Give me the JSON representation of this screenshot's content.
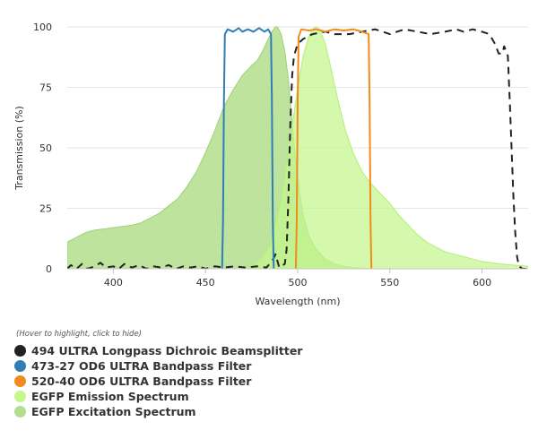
{
  "chart_data": {
    "type": "area",
    "title": "",
    "xlabel": "Wavelength (nm)",
    "ylabel": "Transmission (%)",
    "xlim": [
      375,
      625
    ],
    "ylim": [
      0,
      100
    ],
    "x_ticks": [
      "400",
      "450",
      "500",
      "550",
      "600"
    ],
    "y_ticks": [
      "0",
      "25",
      "50",
      "75",
      "100"
    ],
    "grid": "horizontal",
    "legend_placement": "bottom-left",
    "legend_hint": "(Hover to highlight, click to hide)",
    "series": [
      {
        "name": "494 ULTRA Longpass Dichroic Beamsplitter",
        "color": "#222222",
        "style": "dashed-line",
        "points": [
          [
            375,
            0
          ],
          [
            377,
            1.5
          ],
          [
            380,
            0
          ],
          [
            383,
            2
          ],
          [
            386,
            0
          ],
          [
            390,
            1
          ],
          [
            393,
            2.5
          ],
          [
            396,
            0.5
          ],
          [
            400,
            1
          ],
          [
            403,
            0
          ],
          [
            406,
            2
          ],
          [
            410,
            0.5
          ],
          [
            414,
            1.5
          ],
          [
            418,
            0
          ],
          [
            422,
            1
          ],
          [
            426,
            0.5
          ],
          [
            430,
            1.5
          ],
          [
            434,
            0
          ],
          [
            438,
            1
          ],
          [
            442,
            0.5
          ],
          [
            446,
            1
          ],
          [
            450,
            0
          ],
          [
            455,
            1
          ],
          [
            460,
            0.5
          ],
          [
            466,
            1
          ],
          [
            472,
            0.5
          ],
          [
            478,
            1
          ],
          [
            483,
            0.5
          ],
          [
            486,
            3
          ],
          [
            488,
            6
          ],
          [
            490,
            0.5
          ],
          [
            493,
            2
          ],
          [
            494,
            8
          ],
          [
            495,
            30
          ],
          [
            496,
            60
          ],
          [
            497,
            80
          ],
          [
            498,
            88
          ],
          [
            500,
            93
          ],
          [
            503,
            95
          ],
          [
            508,
            97
          ],
          [
            515,
            98
          ],
          [
            520,
            97
          ],
          [
            528,
            97
          ],
          [
            535,
            98
          ],
          [
            542,
            99
          ],
          [
            550,
            97
          ],
          [
            558,
            99
          ],
          [
            565,
            98
          ],
          [
            572,
            97
          ],
          [
            580,
            98
          ],
          [
            586,
            99
          ],
          [
            590,
            98
          ],
          [
            595,
            99
          ],
          [
            600,
            98
          ],
          [
            604,
            97
          ],
          [
            607,
            93
          ],
          [
            609,
            89
          ],
          [
            611,
            89
          ],
          [
            612,
            92
          ],
          [
            614,
            88
          ],
          [
            615,
            70
          ],
          [
            616,
            50
          ],
          [
            617,
            30
          ],
          [
            618,
            15
          ],
          [
            619,
            5
          ],
          [
            620,
            1
          ],
          [
            622,
            0
          ],
          [
            625,
            0
          ]
        ]
      },
      {
        "name": "473-27 OD6 ULTRA Bandpass Filter",
        "color": "#2f7eb8",
        "style": "line",
        "points": [
          [
            459,
            0
          ],
          [
            459.5,
            20
          ],
          [
            460,
            70
          ],
          [
            460.5,
            97
          ],
          [
            462,
            99
          ],
          [
            465,
            98
          ],
          [
            468,
            99.5
          ],
          [
            470,
            98
          ],
          [
            473,
            99
          ],
          [
            476,
            98
          ],
          [
            479,
            99.5
          ],
          [
            482,
            98
          ],
          [
            484,
            99
          ],
          [
            485.5,
            97
          ],
          [
            486,
            70
          ],
          [
            486.5,
            20
          ],
          [
            487,
            0
          ]
        ]
      },
      {
        "name": "520-40 OD6 ULTRA Bandpass Filter",
        "color": "#f08c1c",
        "style": "line",
        "points": [
          [
            499,
            0
          ],
          [
            499.5,
            20
          ],
          [
            500,
            70
          ],
          [
            500.5,
            96
          ],
          [
            502,
            99
          ],
          [
            506,
            98.5
          ],
          [
            510,
            99
          ],
          [
            515,
            98
          ],
          [
            520,
            99
          ],
          [
            525,
            98.5
          ],
          [
            530,
            99
          ],
          [
            535,
            98
          ],
          [
            538.5,
            97
          ],
          [
            539,
            70
          ],
          [
            539.5,
            20
          ],
          [
            540,
            0
          ]
        ]
      },
      {
        "name": "EGFP Emission Spectrum",
        "color": "#c4f78c",
        "style": "area",
        "points": [
          [
            470,
            0
          ],
          [
            475,
            1
          ],
          [
            480,
            4
          ],
          [
            485,
            10
          ],
          [
            490,
            25
          ],
          [
            495,
            48
          ],
          [
            500,
            75
          ],
          [
            503,
            88
          ],
          [
            506,
            96
          ],
          [
            508,
            99
          ],
          [
            510,
            100
          ],
          [
            512,
            99
          ],
          [
            515,
            93
          ],
          [
            518,
            83
          ],
          [
            520,
            76
          ],
          [
            523,
            66
          ],
          [
            526,
            57
          ],
          [
            530,
            48
          ],
          [
            535,
            40
          ],
          [
            540,
            35
          ],
          [
            545,
            31
          ],
          [
            550,
            27
          ],
          [
            555,
            22
          ],
          [
            560,
            18
          ],
          [
            565,
            14
          ],
          [
            570,
            11
          ],
          [
            575,
            9
          ],
          [
            580,
            7
          ],
          [
            585,
            6
          ],
          [
            590,
            5
          ],
          [
            595,
            4
          ],
          [
            600,
            3
          ],
          [
            610,
            2
          ],
          [
            625,
            1
          ]
        ]
      },
      {
        "name": "EGFP Excitation Spectrum",
        "color": "#b3de8c",
        "style": "area",
        "points": [
          [
            375,
            11
          ],
          [
            380,
            13
          ],
          [
            385,
            15
          ],
          [
            390,
            16
          ],
          [
            395,
            16.5
          ],
          [
            400,
            17
          ],
          [
            405,
            17.5
          ],
          [
            410,
            18
          ],
          [
            415,
            19
          ],
          [
            420,
            21
          ],
          [
            425,
            23
          ],
          [
            430,
            26
          ],
          [
            435,
            29
          ],
          [
            440,
            34
          ],
          [
            445,
            40
          ],
          [
            450,
            48
          ],
          [
            455,
            57
          ],
          [
            460,
            67
          ],
          [
            465,
            74
          ],
          [
            470,
            80
          ],
          [
            475,
            84
          ],
          [
            478,
            86
          ],
          [
            481,
            90
          ],
          [
            484,
            95
          ],
          [
            486,
            98
          ],
          [
            488,
            100
          ],
          [
            489,
            100
          ],
          [
            491,
            97
          ],
          [
            493,
            90
          ],
          [
            495,
            78
          ],
          [
            497,
            60
          ],
          [
            499,
            44
          ],
          [
            501,
            32
          ],
          [
            503,
            22
          ],
          [
            506,
            14
          ],
          [
            510,
            8
          ],
          [
            515,
            4
          ],
          [
            520,
            2
          ],
          [
            525,
            1
          ],
          [
            530,
            0.5
          ],
          [
            540,
            0
          ]
        ]
      }
    ]
  }
}
